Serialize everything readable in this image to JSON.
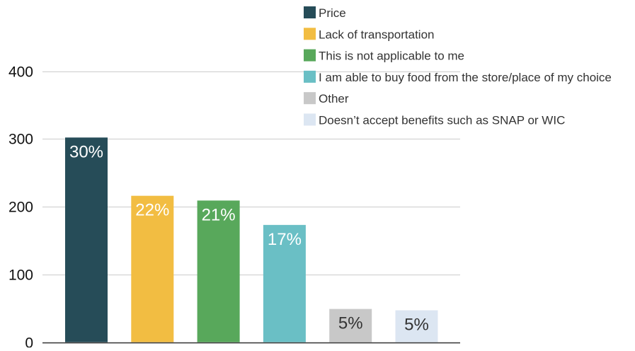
{
  "chart_data": {
    "type": "bar",
    "title": "",
    "xlabel": "",
    "ylabel": "",
    "ylim": [
      0,
      400
    ],
    "yticks": [
      "0",
      "100",
      "200",
      "300",
      "400"
    ],
    "ytick_values": [
      0,
      100,
      200,
      300,
      400
    ],
    "grid": true,
    "legend_position": "top-right",
    "categories": [
      "Price",
      "Lack of transportation",
      "This is not applicable to me",
      "I am able to buy food from the store/place of my choice",
      "Other",
      "Doesn’t accept benefits such as SNAP or WIC"
    ],
    "values": [
      302,
      216,
      209,
      173,
      49,
      47
    ],
    "data_labels": [
      "30%",
      "22%",
      "21%",
      "17%",
      "5%",
      "5%"
    ],
    "colors": [
      "#264c58",
      "#f2bd42",
      "#58a85b",
      "#6abfc5",
      "#c8c8c8",
      "#dce6f2"
    ],
    "label_colors": [
      "#ffffff",
      "#ffffff",
      "#ffffff",
      "#ffffff",
      "#333333",
      "#333333"
    ]
  }
}
